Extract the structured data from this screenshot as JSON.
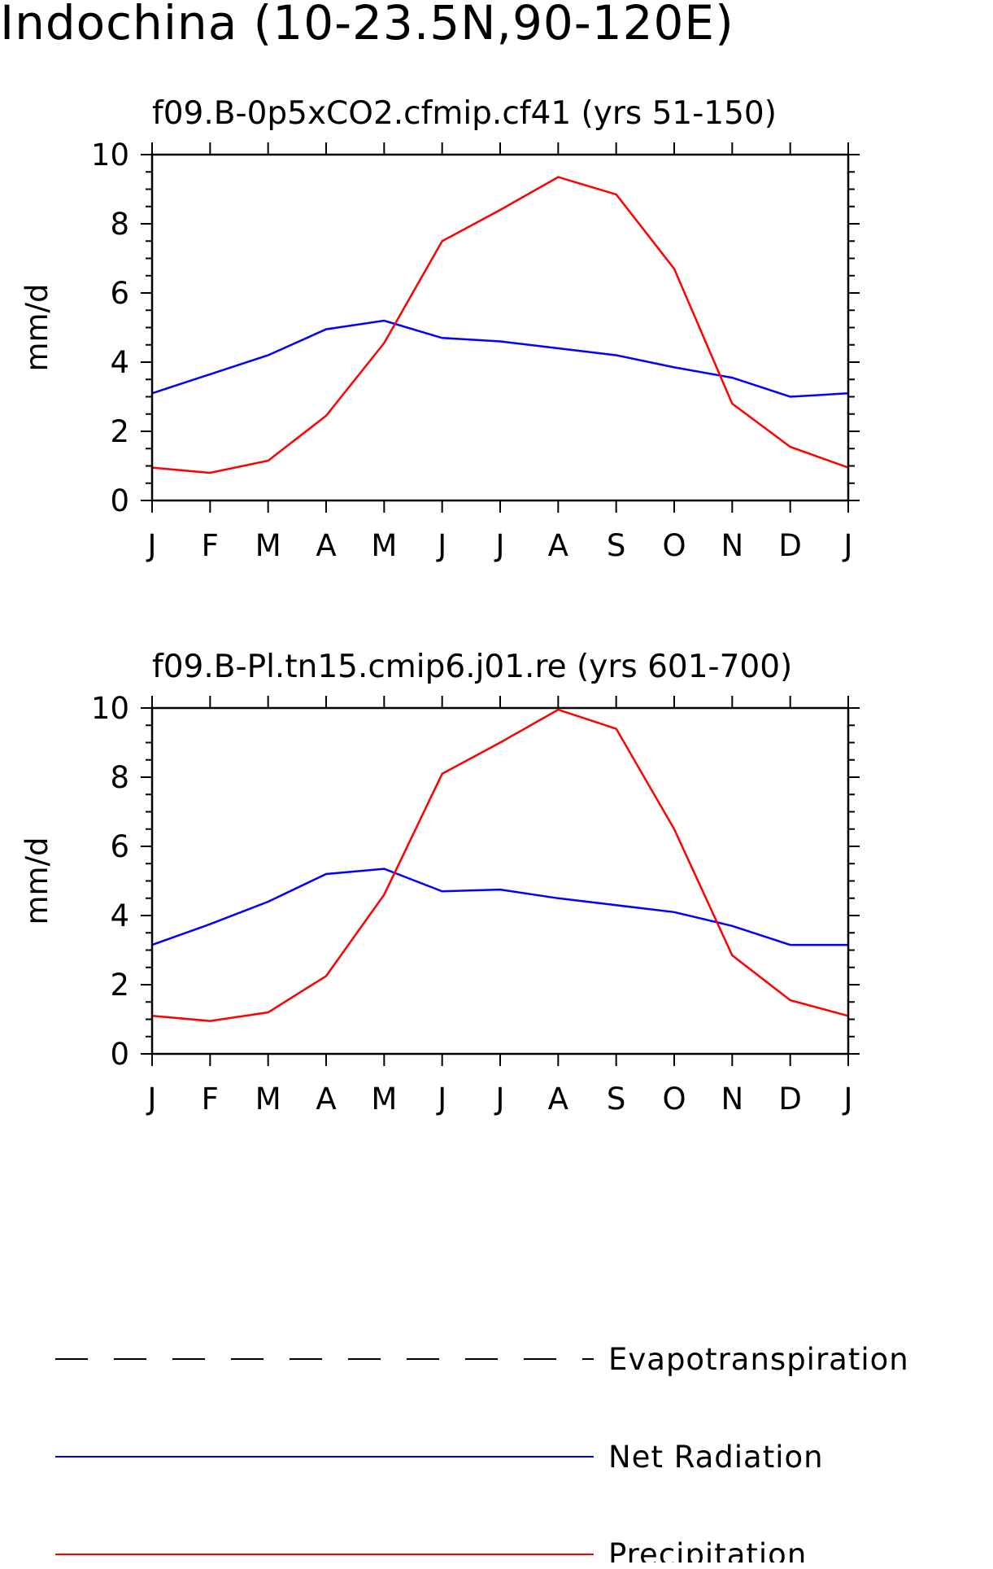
{
  "title": "Indochina (10-23.5N,90-120E)",
  "chart_data": [
    {
      "type": "line",
      "title": "f09.B-0p5xCO2.cfmip.cf41 (yrs 51-150)",
      "xlabel": "",
      "ylabel": "mm/d",
      "categories": [
        "J",
        "F",
        "M",
        "A",
        "M",
        "J",
        "J",
        "A",
        "S",
        "O",
        "N",
        "D",
        "J"
      ],
      "ylim": [
        0,
        10
      ],
      "yticks": [
        "0",
        "2",
        "4",
        "6",
        "8",
        "10"
      ],
      "series": [
        {
          "name": "Net Radiation",
          "color": "#0000ff",
          "values": [
            3.1,
            3.65,
            4.2,
            4.95,
            5.2,
            4.7,
            4.6,
            4.4,
            4.2,
            3.85,
            3.55,
            3.0,
            3.1
          ]
        },
        {
          "name": "Precipitation",
          "color": "#ff0000",
          "values": [
            0.95,
            0.8,
            1.15,
            2.45,
            4.55,
            7.5,
            8.4,
            9.35,
            8.85,
            6.7,
            2.8,
            1.55,
            0.95
          ]
        }
      ]
    },
    {
      "type": "line",
      "title": "f09.B-Pl.tn15.cmip6.j01.re (yrs 601-700)",
      "xlabel": "",
      "ylabel": "mm/d",
      "categories": [
        "J",
        "F",
        "M",
        "A",
        "M",
        "J",
        "J",
        "A",
        "S",
        "O",
        "N",
        "D",
        "J"
      ],
      "ylim": [
        0,
        10
      ],
      "yticks": [
        "0",
        "2",
        "4",
        "6",
        "8",
        "10"
      ],
      "series": [
        {
          "name": "Net Radiation",
          "color": "#0000ff",
          "values": [
            3.15,
            3.75,
            4.4,
            5.2,
            5.35,
            4.7,
            4.75,
            4.5,
            4.3,
            4.1,
            3.7,
            3.15,
            3.15
          ]
        },
        {
          "name": "Precipitation",
          "color": "#ff0000",
          "values": [
            1.1,
            0.95,
            1.2,
            2.25,
            4.6,
            8.1,
            9.0,
            9.95,
            9.4,
            6.5,
            2.85,
            1.55,
            1.1
          ]
        }
      ]
    }
  ],
  "legend": [
    {
      "label": "Evapotranspiration",
      "style": "dashed",
      "color": "#000000"
    },
    {
      "label": "Net Radiation",
      "style": "solid",
      "color": "#0000ff"
    },
    {
      "label": "Precipitation",
      "style": "solid",
      "color": "#ff0000"
    }
  ]
}
